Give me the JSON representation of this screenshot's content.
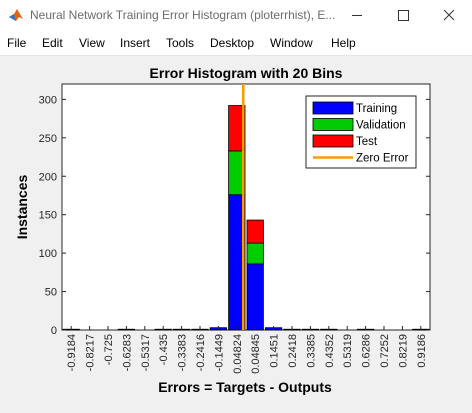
{
  "window": {
    "title": "Neural Network Training Error Histogram (ploterrhist), E...",
    "icon": "matlab-logo-icon"
  },
  "menu": [
    "File",
    "Edit",
    "View",
    "Insert",
    "Tools",
    "Desktop",
    "Window",
    "Help"
  ],
  "chart_data": {
    "type": "bar",
    "stacked": true,
    "title": "Error Histogram with 20 Bins",
    "xlabel": "Errors = Targets - Outputs",
    "ylabel": "Instances",
    "ylim": [
      0,
      320
    ],
    "yticks": [
      0,
      50,
      100,
      150,
      200,
      250,
      300
    ],
    "categories": [
      "-0.9184",
      "-0.8217",
      "-0.725",
      "-0.6283",
      "-0.5317",
      "-0.435",
      "-0.3383",
      "-0.2416",
      "-0.1449",
      "0.04824",
      "0.04845",
      "0.1451",
      "0.2418",
      "0.3385",
      "0.4352",
      "0.5319",
      "0.6286",
      "0.7252",
      "0.8219",
      "0.9186"
    ],
    "series": [
      {
        "name": "Training",
        "color": "#0000ff",
        "values": [
          1,
          0,
          0,
          1,
          0,
          1,
          1,
          1,
          3,
          176,
          86,
          3,
          1,
          1,
          1,
          0,
          1,
          0,
          0,
          1
        ]
      },
      {
        "name": "Validation",
        "color": "#00cc00",
        "values": [
          0,
          0,
          0,
          0,
          0,
          0,
          0,
          0,
          0,
          57,
          27,
          0,
          0,
          0,
          0,
          0,
          0,
          0,
          0,
          0
        ]
      },
      {
        "name": "Test",
        "color": "#ff0000",
        "values": [
          0,
          0,
          0,
          0,
          0,
          0,
          0,
          0,
          0,
          59,
          30,
          0,
          0,
          0,
          0,
          0,
          0,
          0,
          0,
          0
        ]
      }
    ],
    "zero_error": {
      "name": "Zero Error",
      "color": "#ff9900",
      "x": 0
    },
    "legend_position": "top-right",
    "grid": false
  }
}
